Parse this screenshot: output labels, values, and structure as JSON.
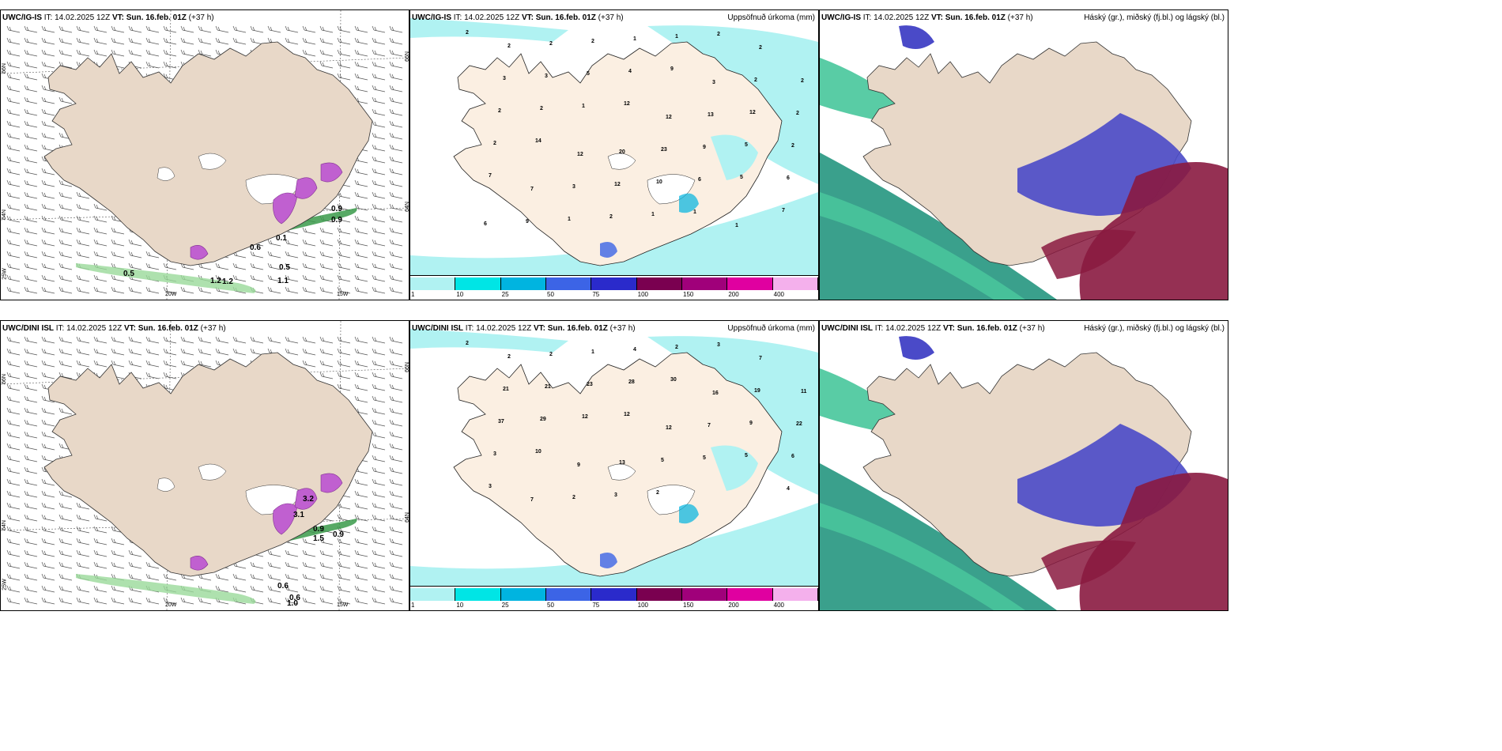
{
  "panels": [
    {
      "id": "tl",
      "model": "UWC/IG-IS",
      "it": "IT: 14.02.2025 12Z",
      "vt_label": "VT:",
      "vt": "Sun. 16.feb. 01Z",
      "lead": "(+37 h)",
      "title": "",
      "lat_labels": [
        "66N",
        "64N",
        "25W"
      ],
      "lon_labels": [
        "20W",
        "15W"
      ],
      "right_lat": [
        "66N",
        "64N"
      ],
      "values": [
        "0.5",
        "1.2",
        "1.2",
        "1.1",
        "0.5",
        "0.6",
        "0.9",
        "0.9",
        "0.1"
      ]
    },
    {
      "id": "tm",
      "model": "UWC/IG-IS",
      "it": "IT: 14.02.2025 12Z",
      "vt_label": "VT:",
      "vt": "Sun. 16.feb. 01Z",
      "lead": "(+37 h)",
      "title": "Uppsöfnuð úrkoma (mm)",
      "numbers": [
        "2",
        "2",
        "2",
        "2",
        "1",
        "1",
        "2",
        "2",
        "2",
        "3",
        "3",
        "5",
        "4",
        "9",
        "3",
        "2",
        "2",
        "2",
        "2",
        "1",
        "12",
        "12",
        "13",
        "12",
        "2",
        "2",
        "14",
        "12",
        "20",
        "23",
        "9",
        "5",
        "6",
        "7",
        "7",
        "3",
        "12",
        "10",
        "6",
        "5",
        "7",
        "6",
        "9",
        "1",
        "2",
        "1",
        "1",
        "1"
      ],
      "colorbar": [
        "1",
        "10",
        "25",
        "50",
        "75",
        "100",
        "150",
        "200",
        "400"
      ]
    },
    {
      "id": "tr",
      "model": "UWC/IG-IS",
      "it": "IT: 14.02.2025 12Z",
      "vt_label": "VT:",
      "vt": "Sun. 16.feb. 01Z",
      "lead": "(+37 h)",
      "title": "Háský (gr.), miðský (fj.bl.) og lágský (bl.)"
    },
    {
      "id": "bl",
      "model": "UWC/DINI ISL",
      "it": "IT: 14.02.2025 12Z",
      "vt_label": "VT:",
      "vt": "Sun. 16.feb. 01Z",
      "lead": "(+37 h)",
      "title": "",
      "lat_labels": [
        "66N",
        "64N",
        "25W"
      ],
      "lon_labels": [
        "20W",
        "15W"
      ],
      "right_lat": [
        "66N",
        "64N"
      ],
      "values": [
        "0.6",
        "0.6",
        "1.0",
        "0.9",
        "0.9",
        "1.5",
        "3.2",
        "3.1"
      ]
    },
    {
      "id": "bm",
      "model": "UWC/DINI ISL",
      "it": "IT: 14.02.2025 12Z",
      "vt_label": "VT:",
      "vt": "Sun. 16.feb. 01Z",
      "lead": "(+37 h)",
      "title": "Uppsöfnuð úrkoma (mm)",
      "numbers": [
        "2",
        "2",
        "2",
        "1",
        "4",
        "2",
        "3",
        "7",
        "11",
        "21",
        "21",
        "23",
        "28",
        "30",
        "16",
        "19",
        "22",
        "37",
        "29",
        "12",
        "12",
        "12",
        "7",
        "9",
        "6",
        "3",
        "10",
        "9",
        "13",
        "5",
        "5",
        "5",
        "4",
        "3",
        "7",
        "2",
        "3",
        "2"
      ],
      "colorbar": [
        "1",
        "10",
        "25",
        "50",
        "75",
        "100",
        "150",
        "200",
        "400"
      ]
    },
    {
      "id": "br",
      "model": "UWC/DINI ISL",
      "it": "IT: 14.02.2025 12Z",
      "vt_label": "VT:",
      "vt": "Sun. 16.feb. 01Z",
      "lead": "(+37 h)",
      "title": "Háský (gr.), miðský (fj.bl.) og lágský (bl.)"
    }
  ],
  "colorbar_colors": [
    "#b0f2f2",
    "#00e5e5",
    "#00b4e0",
    "#3c64e6",
    "#2a2acb",
    "#7a0050",
    "#a0007a",
    "#e000a0",
    "#f4b0ec"
  ]
}
